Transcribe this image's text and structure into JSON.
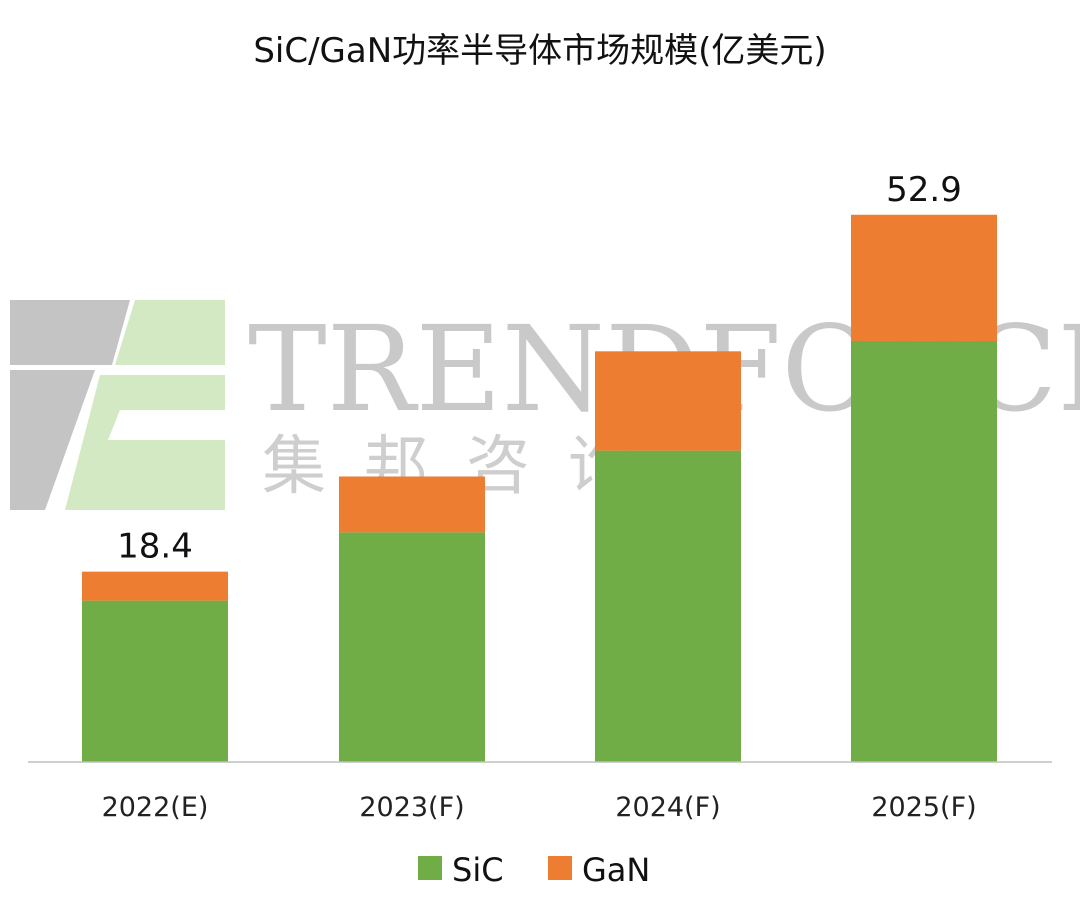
{
  "chart_data": {
    "type": "bar",
    "stacked": true,
    "title": "SiC/GaN功率半导体市场规模(亿美元)",
    "categories": [
      "2022(E)",
      "2023(F)",
      "2024(F)",
      "2025(F)"
    ],
    "series": [
      {
        "name": "SiC",
        "color": "#70ad47",
        "values": [
          15.6,
          22.2,
          30.1,
          40.7
        ]
      },
      {
        "name": "GaN",
        "color": "#ed7d31",
        "values": [
          2.8,
          5.4,
          9.6,
          12.2
        ]
      }
    ],
    "total_labels": [
      "18.4",
      "",
      "",
      "52.9"
    ],
    "ylim": [
      0,
      58
    ],
    "grid": false,
    "legend_position": "bottom"
  },
  "watermark": {
    "latin": "TRENDFORCE",
    "chinese": "集邦咨询"
  }
}
